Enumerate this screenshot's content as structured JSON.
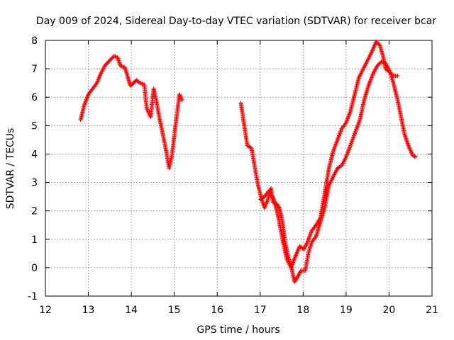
{
  "chart_data": {
    "type": "scatter",
    "title": "Day 009 of 2024, Sidereal Day-to-day VTEC variation (SDTVAR) for receiver bcar",
    "xlabel": "GPS time / hours",
    "ylabel": "SDTVAR / TECUs",
    "xlim": [
      12,
      21
    ],
    "ylim": [
      -1,
      8
    ],
    "xticks": [
      12,
      13,
      14,
      15,
      16,
      17,
      18,
      19,
      20,
      21
    ],
    "yticks": [
      -1,
      0,
      1,
      2,
      3,
      4,
      5,
      6,
      7,
      8
    ],
    "grid": true,
    "marker": "+",
    "series": [
      {
        "name": "SDTVAR",
        "color": "#ff0000",
        "segments": [
          [
            [
              12.82,
              5.2
            ],
            [
              12.9,
              5.7
            ],
            [
              13.0,
              6.1
            ],
            [
              13.1,
              6.3
            ],
            [
              13.2,
              6.5
            ],
            [
              13.28,
              6.8
            ],
            [
              13.38,
              7.1
            ],
            [
              13.5,
              7.3
            ],
            [
              13.6,
              7.45
            ],
            [
              13.68,
              7.4
            ],
            [
              13.75,
              7.1
            ],
            [
              13.85,
              7.05
            ],
            [
              13.92,
              6.7
            ],
            [
              13.98,
              6.4
            ],
            [
              14.05,
              6.5
            ],
            [
              14.12,
              6.6
            ],
            [
              14.2,
              6.5
            ],
            [
              14.3,
              6.45
            ],
            [
              14.36,
              5.6
            ],
            [
              14.45,
              5.3
            ],
            [
              14.52,
              6.3
            ],
            [
              14.58,
              5.9
            ],
            [
              14.65,
              5.3
            ],
            [
              14.72,
              4.8
            ],
            [
              14.8,
              4.2
            ],
            [
              14.88,
              3.5
            ],
            [
              14.95,
              4.0
            ],
            [
              15.02,
              4.9
            ],
            [
              15.08,
              5.6
            ],
            [
              15.12,
              6.1
            ],
            [
              15.18,
              5.9
            ]
          ],
          [
            [
              16.55,
              5.8
            ],
            [
              16.62,
              5.1
            ],
            [
              16.7,
              4.3
            ],
            [
              16.8,
              4.2
            ],
            [
              16.88,
              3.5
            ],
            [
              16.95,
              2.9
            ],
            [
              17.02,
              2.5
            ],
            [
              17.1,
              2.1
            ],
            [
              17.18,
              2.4
            ],
            [
              17.25,
              2.8
            ],
            [
              17.3,
              2.3
            ],
            [
              17.38,
              2.25
            ],
            [
              17.45,
              2.1
            ],
            [
              17.52,
              1.6
            ],
            [
              17.58,
              0.9
            ],
            [
              17.65,
              0.4
            ],
            [
              17.72,
              0.05
            ],
            [
              17.8,
              -0.5
            ],
            [
              17.88,
              -0.3
            ],
            [
              17.95,
              -0.1
            ],
            [
              18.05,
              -0.1
            ],
            [
              18.12,
              0.5
            ],
            [
              18.2,
              0.9
            ],
            [
              18.3,
              1.1
            ],
            [
              18.4,
              1.6
            ],
            [
              18.5,
              2.1
            ],
            [
              18.6,
              2.9
            ],
            [
              18.7,
              3.2
            ],
            [
              18.8,
              3.5
            ],
            [
              18.9,
              3.6
            ],
            [
              19.0,
              3.9
            ],
            [
              19.1,
              4.3
            ],
            [
              19.22,
              4.8
            ],
            [
              19.32,
              5.2
            ],
            [
              19.42,
              5.9
            ],
            [
              19.52,
              6.4
            ],
            [
              19.62,
              6.8
            ],
            [
              19.72,
              7.1
            ],
            [
              19.82,
              7.25
            ],
            [
              19.92,
              7.2
            ],
            [
              20.02,
              6.9
            ],
            [
              20.1,
              6.5
            ],
            [
              20.2,
              5.9
            ],
            [
              20.28,
              5.3
            ],
            [
              20.36,
              4.7
            ],
            [
              20.45,
              4.3
            ],
            [
              20.55,
              3.95
            ],
            [
              20.62,
              3.9
            ]
          ],
          [
            [
              17.0,
              2.4
            ],
            [
              17.1,
              2.5
            ],
            [
              17.2,
              2.7
            ],
            [
              17.32,
              2.4
            ],
            [
              17.42,
              1.8
            ],
            [
              17.52,
              1.0
            ],
            [
              17.62,
              0.3
            ],
            [
              17.72,
              0.0
            ],
            [
              17.82,
              0.4
            ],
            [
              17.92,
              0.75
            ],
            [
              18.02,
              0.65
            ],
            [
              18.1,
              0.9
            ],
            [
              18.2,
              1.3
            ],
            [
              18.3,
              1.5
            ],
            [
              18.4,
              1.75
            ],
            [
              18.5,
              2.6
            ],
            [
              18.6,
              3.5
            ],
            [
              18.7,
              4.1
            ],
            [
              18.8,
              4.5
            ],
            [
              18.9,
              4.9
            ],
            [
              19.0,
              5.1
            ],
            [
              19.1,
              5.5
            ],
            [
              19.2,
              6.1
            ],
            [
              19.3,
              6.7
            ],
            [
              19.4,
              7.0
            ],
            [
              19.5,
              7.3
            ],
            [
              19.6,
              7.6
            ],
            [
              19.7,
              7.95
            ],
            [
              19.78,
              7.85
            ],
            [
              19.86,
              7.45
            ],
            [
              19.92,
              7.0
            ],
            [
              20.0,
              6.9
            ],
            [
              20.1,
              6.75
            ],
            [
              20.2,
              6.75
            ]
          ]
        ]
      }
    ]
  }
}
